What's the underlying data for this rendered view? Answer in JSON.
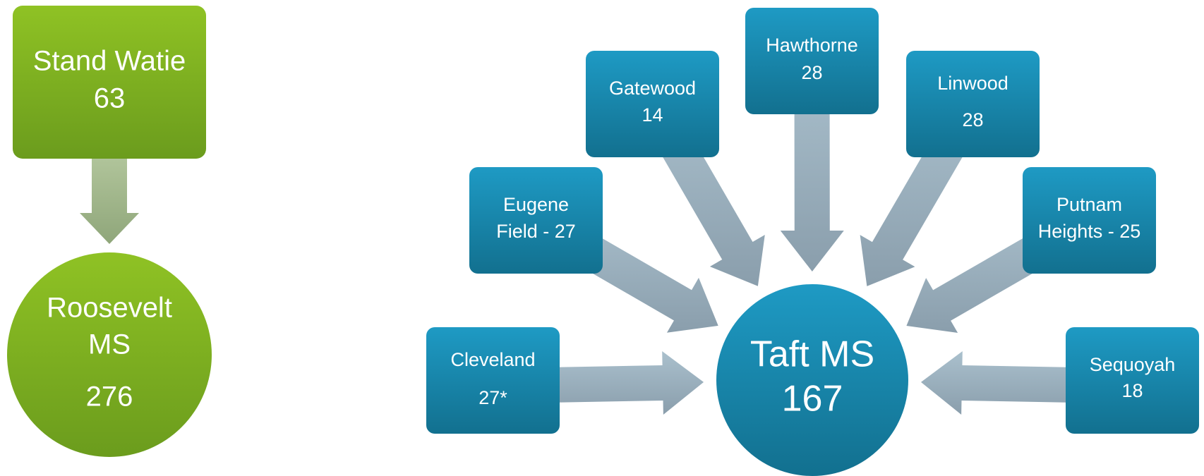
{
  "left": {
    "source": {
      "lines": [
        "Stand Watie",
        "63"
      ]
    },
    "target": {
      "lines": [
        "Roosevelt",
        "MS",
        "276"
      ]
    }
  },
  "right": {
    "center": {
      "lines": [
        "Taft MS",
        "167"
      ]
    },
    "nodes": [
      {
        "lines": [
          "Cleveland",
          "27*"
        ]
      },
      {
        "lines": [
          "Eugene",
          "Field - 27"
        ]
      },
      {
        "lines": [
          "Gatewood",
          "14"
        ]
      },
      {
        "lines": [
          "Hawthorne",
          "28"
        ]
      },
      {
        "lines": [
          "Linwood",
          "28"
        ]
      },
      {
        "lines": [
          "Putnam",
          "Heights - 25"
        ]
      },
      {
        "lines": [
          "Sequoyah",
          "18"
        ]
      }
    ]
  }
}
